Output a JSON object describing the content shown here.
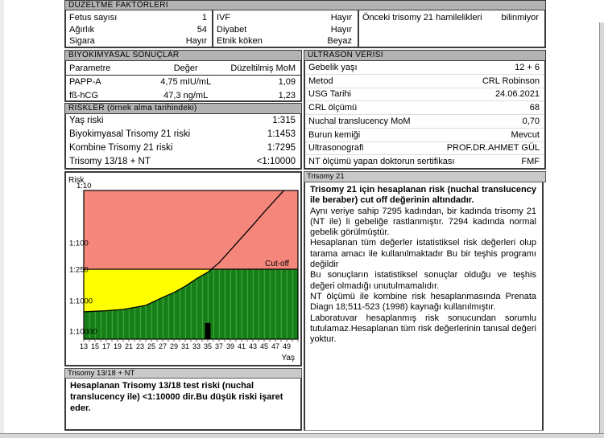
{
  "correction_factors": {
    "title": "DÜZELTME FAKTÖRLERİ",
    "col1": [
      {
        "label": "Fetus sayısı",
        "value": "1"
      },
      {
        "label": "Ağırlık",
        "value": "54"
      },
      {
        "label": "Sigara",
        "value": "Hayır"
      }
    ],
    "col2": [
      {
        "label": "IVF",
        "value": "Hayır"
      },
      {
        "label": "Diyabet",
        "value": "Hayır"
      },
      {
        "label": "Etnik köken",
        "value": "Beyaz"
      }
    ],
    "col3": [
      {
        "label": "Önceki trisomy 21 hamilelikleri",
        "value": "bilinmiyor"
      }
    ]
  },
  "biochemical": {
    "title": "BİYOKİMYASAL SONUÇLAR",
    "headers": [
      "Parametre",
      "Değer",
      "Düzeltilmiş MoM"
    ],
    "rows": [
      [
        "PAPP-A",
        "4,75 mIU/mL",
        "1,09"
      ],
      [
        "fß-hCG",
        "47,3 ng/mL",
        "1,23"
      ]
    ]
  },
  "risks": {
    "title": "RİSKLER (örnek alma tarihindeki)",
    "rows": [
      [
        "Yaş riski",
        "1:315"
      ],
      [
        "Biyokimyasal Trisomy 21 riski",
        "1:1453"
      ],
      [
        "Kombine Trisomy 21 riski",
        "1:7295"
      ],
      [
        "Trisomy 13/18 + NT",
        "<1:10000"
      ]
    ]
  },
  "ultrasound": {
    "title": "ULTRASON VERİSİ",
    "rows": [
      [
        "Gebelik yaşı",
        "12 + 6"
      ],
      [
        "Metod",
        "CRL Robinson"
      ],
      [
        "USG Tarihi",
        "24.06.2021"
      ],
      [
        "CRL ölçümü",
        "68"
      ],
      [
        "Nuchal translucency MoM",
        "0,70"
      ],
      [
        "Burun kemiği",
        "Mevcut"
      ],
      [
        "Ultrasonografi",
        "PROF.DR.AHMET GÜL"
      ],
      [
        "NT ölçümü yapan doktorun sertifikası",
        "FMF"
      ]
    ]
  },
  "trisomy21_panel": {
    "title": "Trisomy 21",
    "paragraphs": [
      {
        "bold": true,
        "text": "Trisomy 21 için hesaplanan risk (nuchal translucency ile beraber) cut off değerinin altındadır."
      },
      {
        "bold": false,
        "text": "Aynı veriye sahip 7295 kadından, bir kadında trisomy 21 (NT ile) li gebeliğe rastlanmıştır. 7294 kadında normal gebelik görülmüştür."
      },
      {
        "bold": false,
        "text": "Hesaplanan tüm değerler istatistiksel risk değerleri olup tarama amacı ile kullanılmaktadır Bu bir teşhis programı değildir"
      },
      {
        "bold": false,
        "text": "Bu sonuçların istatistiksel sonuçlar olduğu ve teşhis değeri olmadığı unutulmamalıdır."
      },
      {
        "bold": false,
        "text": "NT ölçümü ile kombine risk hesaplanmasında Prenata Diagn 18;511-523 (1998) kaynağı kullanılmıştır."
      },
      {
        "bold": false,
        "text": "Laboratuvar hesaplanmış risk sonucundan sorumlu tutulamaz.Hesaplanan tüm risk değerlerinin tanısal değeri yoktur."
      }
    ]
  },
  "trisomy1318_panel": {
    "title": "Trisomy 13/18 + NT",
    "text": "Hesaplanan Trisomy 13/18 test riski (nuchal translucency ile)  <1:10000 dir.Bu düşük riski işaret eder."
  },
  "chart_data": {
    "type": "area",
    "title": "",
    "y_axis_label": "Risk",
    "x_axis_label": "Yaş",
    "cutoff_label": "Cut-off",
    "cutoff_risk": "1:250",
    "cutoff_denom": 250,
    "y_ticks": [
      {
        "label": "1:10",
        "denom": 10
      },
      {
        "label": "1:100",
        "denom": 100
      },
      {
        "label": "1:250",
        "denom": 250
      },
      {
        "label": "1:1000",
        "denom": 1000
      },
      {
        "label": "1:10000",
        "denom": 10000
      }
    ],
    "x_ticks": [
      13,
      15,
      17,
      19,
      21,
      23,
      25,
      27,
      29,
      31,
      33,
      35,
      37,
      39,
      41,
      43,
      45,
      47,
      49
    ],
    "x_range": [
      13,
      51
    ],
    "age_risk_curve": [
      [
        13,
        2330
      ],
      [
        17,
        2150
      ],
      [
        20,
        1950
      ],
      [
        24,
        1440
      ],
      [
        27,
        870
      ],
      [
        29,
        700
      ],
      [
        31,
        530
      ],
      [
        33,
        380
      ],
      [
        35,
        285
      ],
      [
        37,
        200
      ],
      [
        39,
        130
      ],
      [
        41,
        80
      ],
      [
        43,
        46
      ],
      [
        45,
        26
      ],
      [
        47,
        15
      ],
      [
        48.5,
        10
      ]
    ],
    "patient_marker": {
      "age": 35,
      "risk_denom": 7295,
      "risk": "1:7295"
    },
    "colors": {
      "above_cutoff": "#f4867c",
      "between_cutoff_and_curve": "#ffff00",
      "below_curve": "#157f15",
      "below_curve_stripe": "#3da03d",
      "curve": "#000000",
      "marker": "#000000"
    }
  },
  "ui_colors": {
    "header_bar": "#b3b3b3",
    "subheader_bar": "#c9c9c9",
    "box_border": "#3a3a3a"
  }
}
